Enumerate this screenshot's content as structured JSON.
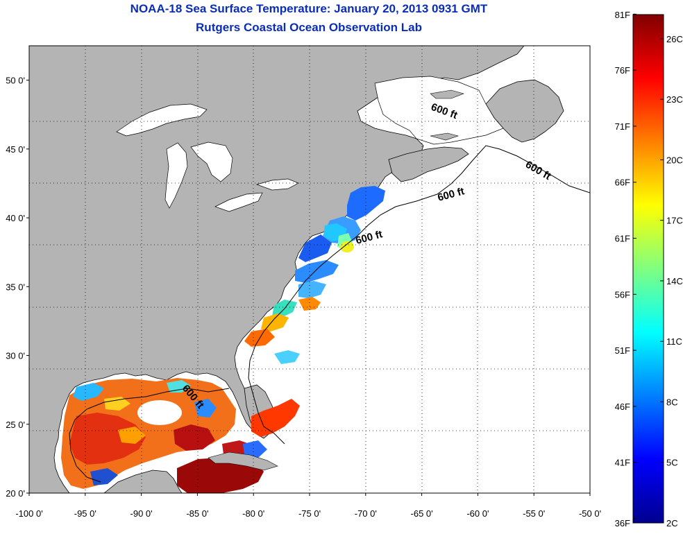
{
  "title": {
    "line1": "NOAA-18 Sea Surface Temperature:  January 20, 2013 0931 GMT",
    "line2": "Rutgers Coastal Ocean Observation Lab"
  },
  "map": {
    "lat_range": [
      20,
      52.5
    ],
    "lon_range": [
      -100,
      -50
    ],
    "lat_ticks": [
      {
        "value": 20,
        "label": "20 0'"
      },
      {
        "value": 25,
        "label": "25 0'"
      },
      {
        "value": 30,
        "label": "30 0'"
      },
      {
        "value": 35,
        "label": "35 0'"
      },
      {
        "value": 40,
        "label": "40 0'"
      },
      {
        "value": 45,
        "label": "45 0'"
      },
      {
        "value": 50,
        "label": "50 0'"
      }
    ],
    "lon_ticks": [
      {
        "value": -100,
        "label": "-100 0'"
      },
      {
        "value": -95,
        "label": "-95 0'"
      },
      {
        "value": -90,
        "label": "-90 0'"
      },
      {
        "value": -85,
        "label": "-85 0'"
      },
      {
        "value": -80,
        "label": "-80 0'"
      },
      {
        "value": -75,
        "label": "-75 0'"
      },
      {
        "value": -70,
        "label": "-70 0'"
      },
      {
        "value": -65,
        "label": "-65 0'"
      },
      {
        "value": -60,
        "label": "-60 0'"
      },
      {
        "value": -55,
        "label": "-55 0'"
      },
      {
        "value": -50,
        "label": "-50 0'"
      }
    ],
    "contour_label": "600 ft",
    "land_color": "#b4b4b4",
    "ocean_nodata_color": "#ffffff",
    "grid": "dotted"
  },
  "colorbar": {
    "min_c": 2,
    "max_c": 27.2,
    "colormap": "jet",
    "fahrenheit_labels": [
      "81F",
      "76F",
      "71F",
      "66F",
      "61F",
      "56F",
      "51F",
      "46F",
      "41F",
      "36F"
    ],
    "celsius_labels": [
      "26C",
      "23C",
      "20C",
      "17C",
      "14C",
      "11C",
      "8C",
      "5C",
      "2C"
    ]
  }
}
